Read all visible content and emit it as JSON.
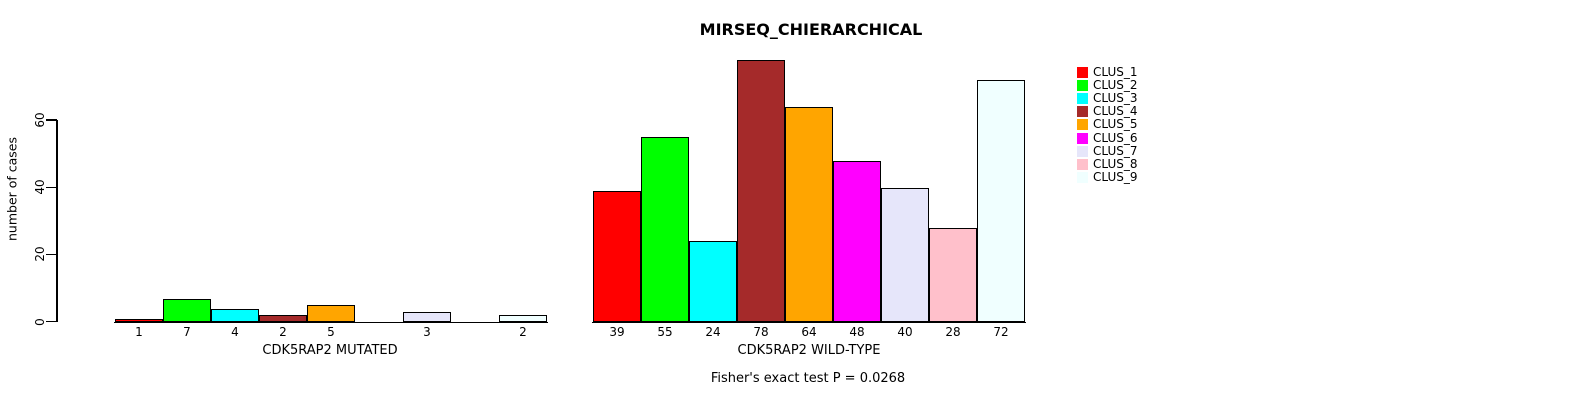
{
  "chart_data": {
    "type": "bar",
    "title": "MIRSEQ_CHIERARCHICAL",
    "ylabel": "number of cases",
    "xlabel": "",
    "ylim": [
      0,
      80
    ],
    "yticks": [
      0,
      20,
      40,
      60
    ],
    "grid": false,
    "legend_position": "right",
    "clusters": [
      "CLUS_1",
      "CLUS_2",
      "CLUS_3",
      "CLUS_4",
      "CLUS_5",
      "CLUS_6",
      "CLUS_7",
      "CLUS_8",
      "CLUS_9"
    ],
    "colors": [
      "#FF0000",
      "#00FF00",
      "#00FFFF",
      "#A52A2A",
      "#FFA500",
      "#FF00FF",
      "#E6E6FA",
      "#FFC0CB",
      "#F0FFFF"
    ],
    "bar_border_color": "#000000",
    "groups": [
      {
        "label": "CDK5RAP2 MUTATED",
        "values": [
          1,
          7,
          4,
          2,
          5,
          0,
          3,
          0,
          2
        ]
      },
      {
        "label": "CDK5RAP2 WILD-TYPE",
        "values": [
          39,
          55,
          24,
          78,
          64,
          48,
          40,
          28,
          72
        ]
      }
    ],
    "zero_value_labels_hidden": true,
    "annotation": "Fisher's exact test P = 0.0268"
  }
}
